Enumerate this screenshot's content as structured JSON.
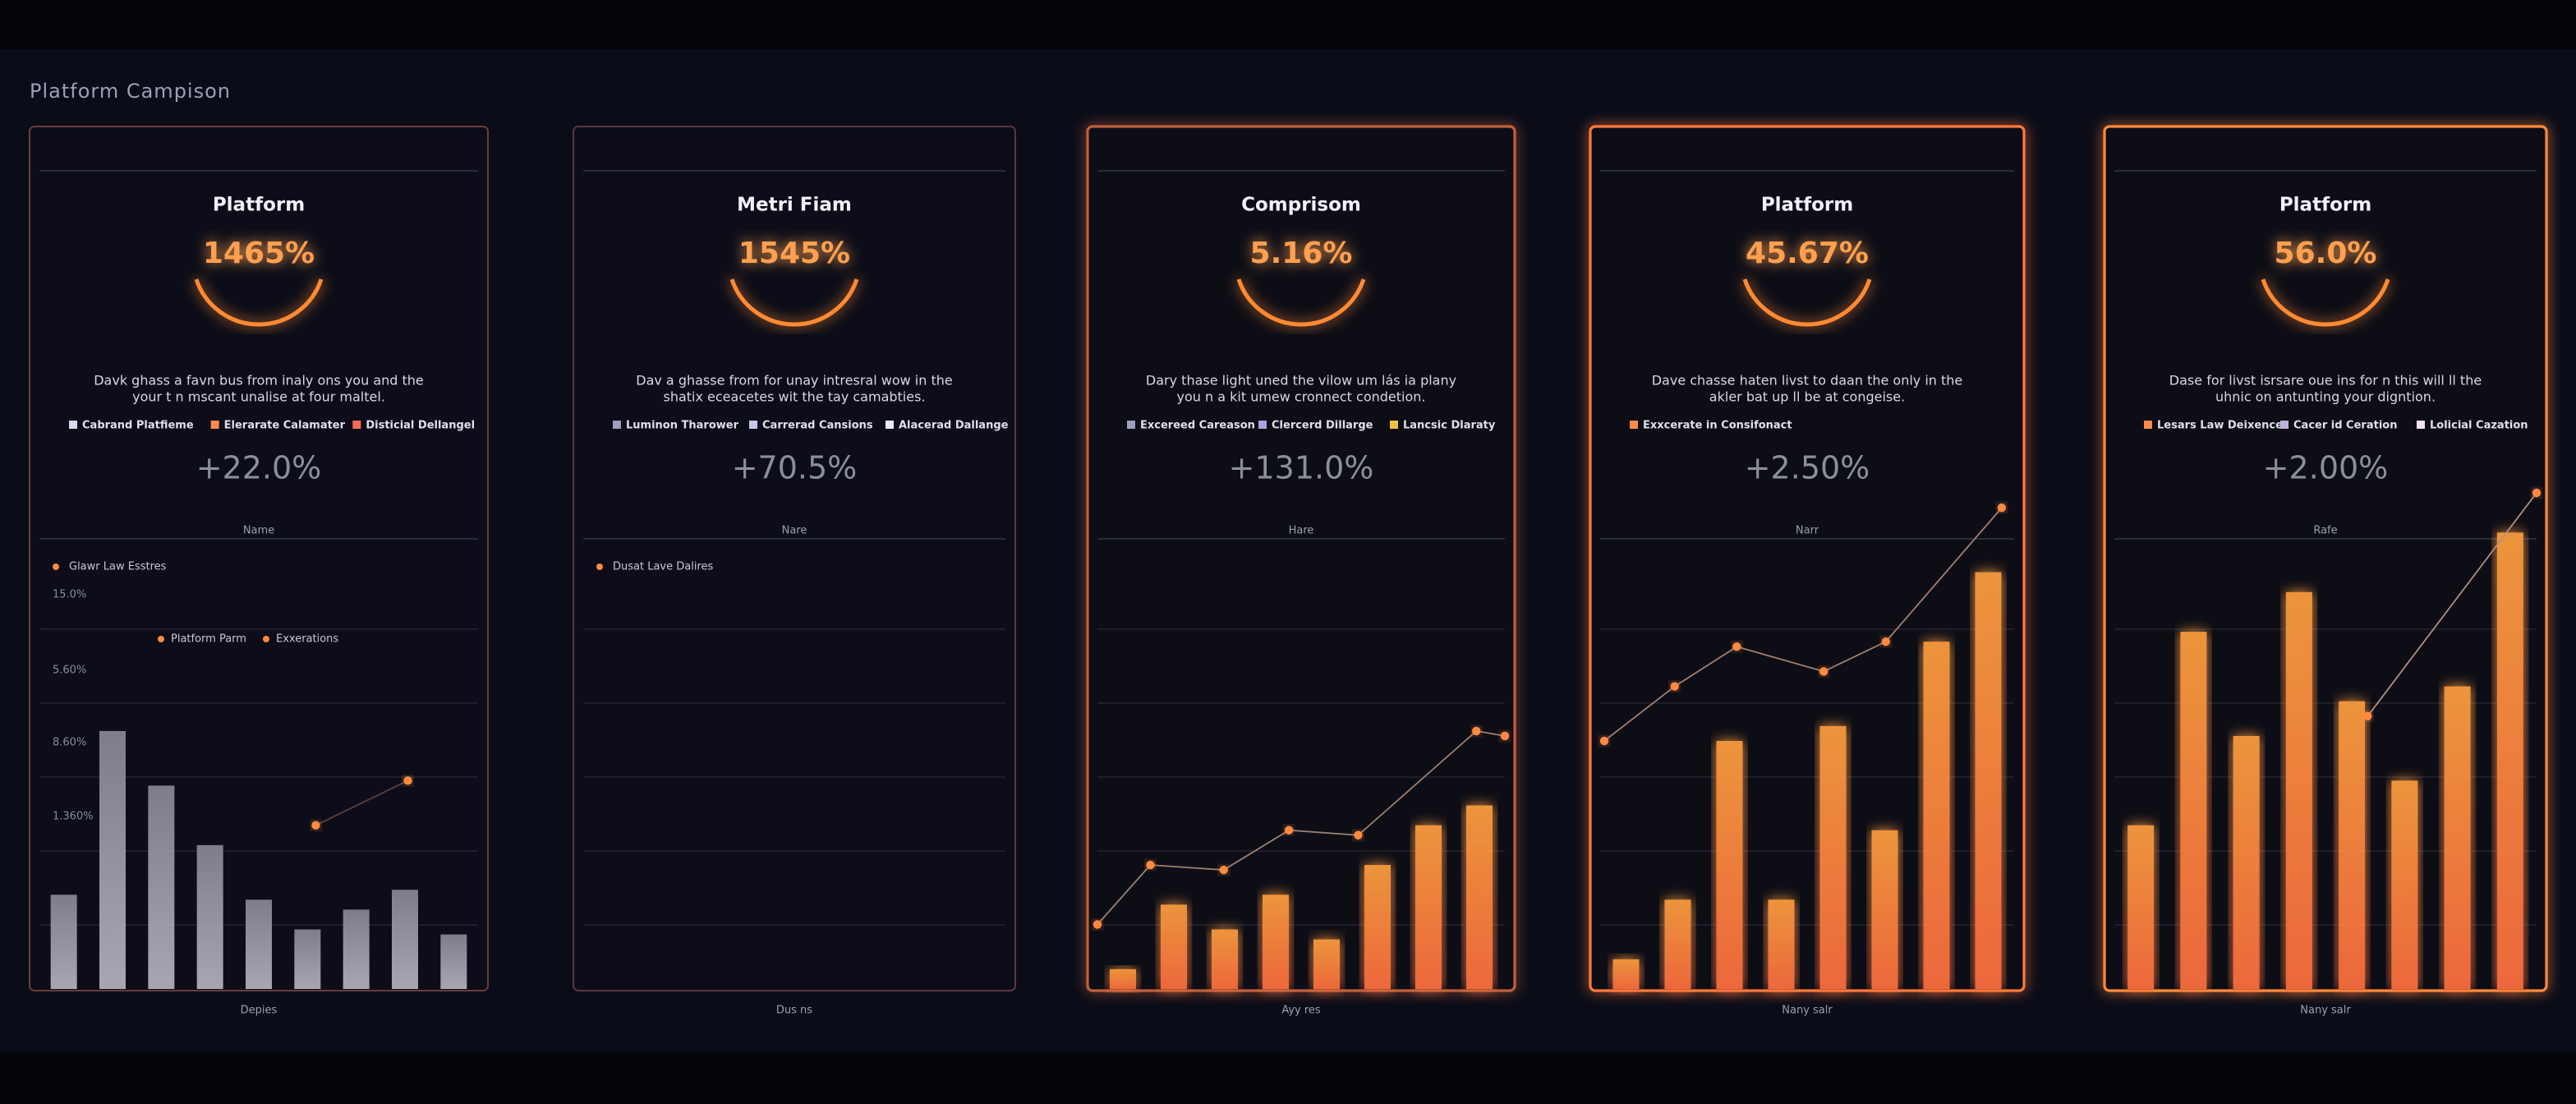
{
  "title": "Platform Campison",
  "cards": [
    {
      "title": "Platform",
      "value": "1465%",
      "description": [
        "Davk ghass a favn bus from inaly ons you and the",
        "your t n mscant unalise at four maltel."
      ],
      "legend": [
        "Cabrand Platfieme",
        "Elerarate Calamater",
        "Disticial Dellangel"
      ],
      "legend_colors": [
        "#d8d8f0",
        "#ff8a4a",
        "#ff6a5a"
      ],
      "delta": "+22.0%",
      "section_label": "Name",
      "footer": "Depies",
      "chart_notes": [
        "Glawr Law Esstres"
      ],
      "axis_labels": [
        "15.0%",
        "5.60%",
        "8.60%",
        "1.360%"
      ],
      "chart_legend": [
        "Platform Parm",
        "Exxerations"
      ],
      "accent": "#6a3c3c",
      "chart": {
        "type": "bar",
        "color": "#9c9ca8",
        "ylim": [
          0,
          100
        ],
        "values": [
          19,
          52,
          41,
          29,
          18,
          12,
          16,
          20,
          11
        ],
        "line": {
          "color": "#5a4040",
          "xlim": [
            0,
            100
          ],
          "x": [
            63,
            84
          ],
          "values": [
            33,
            42
          ]
        }
      }
    },
    {
      "title": "Metri Fiam",
      "value": "1545%",
      "description": [
        "Dav a ghasse from for unay intresral wow in the",
        "shatix eceacetes wit the tay camabties."
      ],
      "legend": [
        "Luminon Tharower",
        "Carrerad Cansions",
        "Alacerad Dallange"
      ],
      "legend_colors": [
        "#9aa0c0",
        "#c8c8e8",
        "#e8e8ff"
      ],
      "delta": "+70.5%",
      "section_label": "Nare",
      "footer": "Dus ns",
      "chart_notes": [
        "Dusat Lave Dalires"
      ],
      "accent": "#5c3442",
      "chart": {
        "type": "bar",
        "color": "#ff8a3d",
        "ylim": [
          0,
          100
        ],
        "values": []
      }
    },
    {
      "title": "Comprisom",
      "value": "5.16%",
      "description": [
        "Dary thase light uned the vilow um lás ia plany",
        "you n a kit umew cronnect condetion."
      ],
      "legend": [
        "Excereed Careason",
        "Clercerd Dillarge",
        "Lancsic Dlaraty"
      ],
      "legend_colors": [
        "#9aa0c0",
        "#b0a0e0",
        "#f0c040"
      ],
      "delta": "+131.0%",
      "section_label": "Hare",
      "footer": "Ayy res",
      "accent": "#c0603a",
      "chart": {
        "type": "bar",
        "color": "#ff8a3d",
        "ylim": [
          0,
          100
        ],
        "values": [
          4,
          17,
          12,
          19,
          10,
          25,
          33,
          37
        ],
        "line": {
          "color": "#9a8070",
          "xlim": [
            0,
            100
          ],
          "x": [
            0,
            13,
            31,
            47,
            64,
            93,
            100
          ],
          "values": [
            13,
            25,
            24,
            32,
            31,
            52,
            51
          ]
        }
      }
    },
    {
      "title": "Platform",
      "value": "45.67%",
      "description": [
        "Dave chasse haten livst to daan the only in the",
        "akler bat up ll be at congeise."
      ],
      "legend": [
        "Exxcerate in Consifonact"
      ],
      "legend_colors": [
        "#ff8a4a"
      ],
      "delta": "+2.50%",
      "section_label": "Narr",
      "footer": "Nany salr",
      "accent": "#ff7a3a",
      "chart": {
        "type": "bar",
        "color": "#ff8a3d",
        "ylim": [
          0,
          100
        ],
        "values": [
          6,
          18,
          50,
          18,
          53,
          32,
          70,
          84
        ],
        "line": {
          "color": "#a08070",
          "xlim": [
            0,
            100
          ],
          "x": [
            1,
            18,
            33,
            54,
            69,
            97
          ],
          "values": [
            50,
            61,
            69,
            64,
            70,
            97
          ]
        }
      }
    },
    {
      "title": "Platform",
      "value": "56.0%",
      "description": [
        "Dase for livst isrsare oue ins for n this will ll the",
        "uhnic on antunting your digntion."
      ],
      "legend": [
        "Lesars Law Deixence",
        "Cacer id Ceration",
        "Lolicial Cazation"
      ],
      "legend_colors": [
        "#ff8a4a",
        "#c0b0e0",
        "#f0e0f0"
      ],
      "delta": "+2.00%",
      "section_label": "Rafe",
      "footer": "Nany salr",
      "accent": "#ff8a3a",
      "chart": {
        "type": "bar",
        "color": "#ff8a3d",
        "ylim": [
          0,
          100
        ],
        "values": [
          33,
          72,
          51,
          80,
          58,
          42,
          61,
          92
        ],
        "line": {
          "color": "#b09080",
          "xlim": [
            0,
            100
          ],
          "x": [
            60,
            100
          ],
          "values": [
            55,
            100
          ]
        }
      }
    }
  ]
}
